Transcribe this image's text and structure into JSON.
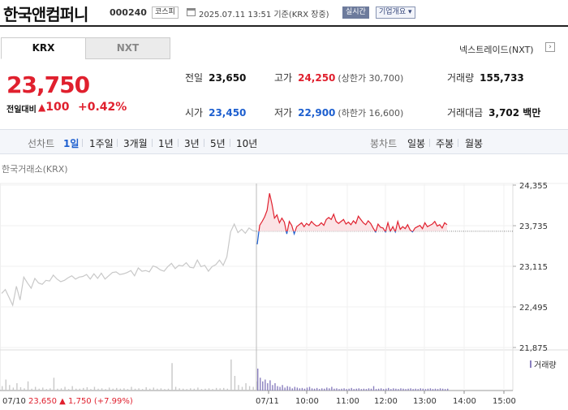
{
  "header": {
    "company_name": "한국앤컴퍼니",
    "stock_code": "000240",
    "market_badge": "코스피",
    "timestamp": "2025.07.11 13:51 기준(KRX 장중)",
    "realtime_badge": "실시간",
    "company_info_button": "기업개요 ▾"
  },
  "tabs": {
    "krx": "KRX",
    "nxt": "NXT"
  },
  "nextrade_link": "넥스트레이드(NXT)",
  "price": {
    "current": "23,750",
    "change_label": "전일대비",
    "change_amount": "100",
    "change_percent": "+0.42%"
  },
  "stats": {
    "prev_close": {
      "label": "전일",
      "value": "23,650"
    },
    "high": {
      "label": "고가",
      "value": "24,250",
      "sub": "(상한가 30,700)"
    },
    "volume": {
      "label": "거래량",
      "value": "155,733"
    },
    "open": {
      "label": "시가",
      "value": "23,450"
    },
    "low": {
      "label": "저가",
      "value": "22,900",
      "sub": "(하한가 16,600)"
    },
    "trade_value": {
      "label": "거래대금",
      "value": "3,702 백만"
    }
  },
  "period_bar": {
    "line_label": "선차트",
    "line_periods": [
      "1일",
      "1주일",
      "3개월",
      "1년",
      "3년",
      "5년",
      "10년"
    ],
    "active_period": "1일",
    "candle_label": "봉차트",
    "candle_periods": [
      "일봉",
      "주봉",
      "월봉"
    ]
  },
  "chart_title": "한국거래소(KRX)",
  "chart_data": {
    "type": "line",
    "y_ticks": [
      "24,355",
      "23,735",
      "23,115",
      "22,495",
      "21,875"
    ],
    "ylim": [
      21875,
      24355
    ],
    "reference_price": 23650,
    "volume_legend": "거래량",
    "x_ticks": [
      "07/11",
      "10:00",
      "11:00",
      "12:00",
      "13:00",
      "14:00",
      "15:00"
    ],
    "prev_day_label": {
      "date": "07/10",
      "close": "23,650",
      "change": "1,750",
      "percent": "(+7.99%)"
    },
    "series": [
      {
        "day": "07/10",
        "color": "#c8c8c8",
        "values": [
          22700,
          22760,
          22640,
          22520,
          22810,
          22600,
          22950,
          22860,
          22780,
          22930,
          22860,
          22840,
          22900,
          22890,
          22980,
          22920,
          22880,
          22900,
          22940,
          22970,
          22920,
          22950,
          22960,
          22990,
          22920,
          23000,
          22930,
          23010,
          22920,
          22970,
          23020,
          23030,
          22990,
          23000,
          23020,
          23050,
          22970,
          23090,
          23040,
          23050,
          23030,
          23120,
          23100,
          23060,
          23040,
          23110,
          23160,
          23080,
          23130,
          23120,
          23170,
          23100,
          23090,
          23210,
          23110,
          23130,
          23040,
          23110,
          23140,
          23210,
          23130,
          23260,
          23640,
          23760,
          23630,
          23680,
          23620,
          23700,
          23660,
          23650
        ]
      },
      {
        "day": "07/11",
        "color_up": "#e0202e",
        "color_down": "#1d5fcf",
        "values": [
          23450,
          23740,
          23800,
          23870,
          23970,
          24230,
          24060,
          23850,
          23900,
          23780,
          23850,
          23790,
          23610,
          23800,
          23740,
          23610,
          23720,
          23750,
          23780,
          23720,
          23770,
          23740,
          23800,
          23760,
          23730,
          23740,
          23780,
          23740,
          23830,
          23860,
          23830,
          23910,
          23800,
          23770,
          23800,
          23830,
          23760,
          23790,
          23750,
          23810,
          23770,
          23880,
          23830,
          23780,
          23750,
          23810,
          23770,
          23700,
          23640,
          23760,
          23710,
          23700,
          23640,
          23780,
          23650,
          23720,
          23640,
          23800,
          23680,
          23720,
          23690,
          23750,
          23670,
          23640,
          23700,
          23720,
          23740,
          23690,
          23780,
          23720,
          23740,
          23760,
          23800,
          23730,
          23750,
          23700,
          23780,
          23750
        ]
      }
    ],
    "volume": [
      {
        "day": "07/10",
        "color": "#c8c8c8",
        "values": [
          0.12,
          0.3,
          0.15,
          0.08,
          0.2,
          0.09,
          0.06,
          0.25,
          0.05,
          0.1,
          0.05,
          0.08,
          0.04,
          0.06,
          0.35,
          0.05,
          0.06,
          0.1,
          0.04,
          0.12,
          0.05,
          0.05,
          0.07,
          0.09,
          0.04,
          0.1,
          0.05,
          0.06,
          0.04,
          0.08,
          0.05,
          0.07,
          0.05,
          0.06,
          0.04,
          0.1,
          0.05,
          0.06,
          0.04,
          0.09,
          0.05,
          0.08,
          0.05,
          0.06,
          0.04,
          0.05,
          0.75,
          0.1,
          0.06,
          0.05,
          0.04,
          0.06,
          0.05,
          0.08,
          0.04,
          0.05,
          0.06,
          0.04,
          0.07,
          0.06,
          0.07,
          0.05,
          0.85,
          0.4,
          0.15,
          0.1,
          0.2,
          0.12,
          0.1,
          0.25
        ]
      },
      {
        "day": "07/11",
        "color": "#8a7fbf",
        "values": [
          0.6,
          0.35,
          0.25,
          0.3,
          0.2,
          0.28,
          0.15,
          0.2,
          0.12,
          0.1,
          0.15,
          0.08,
          0.12,
          0.1,
          0.06,
          0.1,
          0.08,
          0.06,
          0.07,
          0.05,
          0.08,
          0.1,
          0.06,
          0.05,
          0.07,
          0.04,
          0.06,
          0.05,
          0.08,
          0.06,
          0.1,
          0.05,
          0.06,
          0.04,
          0.05,
          0.06,
          0.04,
          0.05,
          0.07,
          0.04,
          0.05,
          0.06,
          0.04,
          0.05,
          0.04,
          0.06,
          0.05,
          0.12,
          0.04,
          0.05,
          0.06,
          0.04,
          0.05,
          0.07,
          0.04,
          0.06,
          0.05,
          0.04,
          0.06,
          0.05,
          0.04,
          0.05,
          0.06,
          0.04,
          0.05,
          0.04,
          0.06,
          0.05,
          0.04,
          0.05,
          0.06,
          0.04,
          0.05,
          0.04,
          0.06,
          0.05,
          0.04,
          0.05
        ]
      }
    ]
  }
}
